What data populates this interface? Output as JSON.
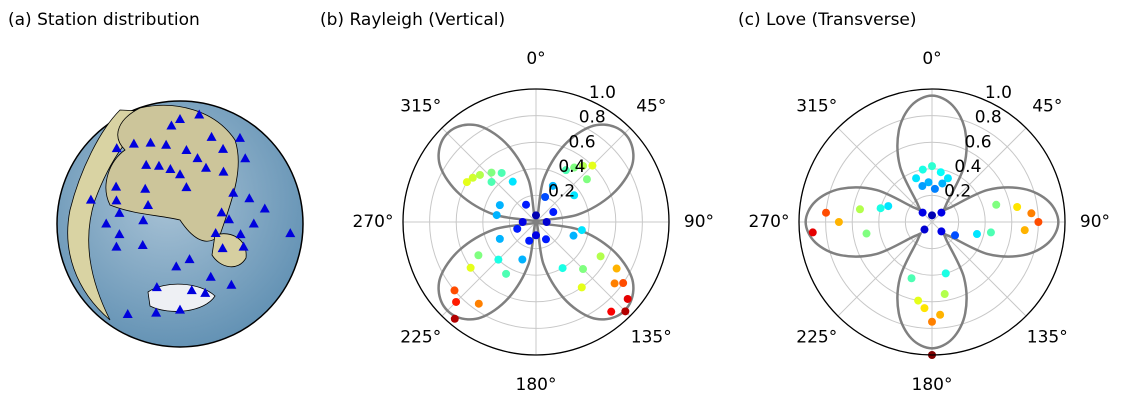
{
  "chart_data": [
    {
      "type": "station-map",
      "title": "(a) Station distribution",
      "marker_color": "#0000dd",
      "points": {
        "theta": [
          0,
          10,
          355,
          20,
          30,
          350,
          5,
          15,
          340,
          330,
          320,
          25,
          40,
          45,
          35,
          0,
          350,
          340,
          10,
          330,
          300,
          290,
          280,
          270,
          260,
          250,
          275,
          300,
          315,
          285,
          240,
          60,
          70,
          80,
          90,
          100,
          110,
          95,
          85,
          105,
          120,
          75,
          150,
          160,
          170,
          180,
          195,
          200,
          140,
          210,
          185,
          165
        ],
        "r": [
          0.85,
          0.9,
          0.8,
          0.75,
          0.7,
          0.65,
          0.6,
          0.55,
          0.7,
          0.75,
          0.8,
          0.5,
          0.55,
          0.75,
          0.85,
          0.4,
          0.45,
          0.5,
          0.3,
          0.55,
          0.6,
          0.55,
          0.5,
          0.6,
          0.5,
          0.55,
          0.3,
          0.3,
          0.4,
          0.75,
          0.35,
          0.5,
          0.6,
          0.7,
          0.6,
          0.5,
          0.55,
          0.9,
          0.4,
          0.3,
          0.4,
          0.35,
          0.5,
          0.6,
          0.55,
          0.7,
          0.75,
          0.55,
          0.65,
          0.85,
          0.35,
          0.3
        ]
      }
    },
    {
      "type": "polar",
      "title": "(b) Rayleigh (Vertical)",
      "colormap": "jet",
      "curve_color": "#808080",
      "grid": true,
      "rlim": [
        0,
        1
      ],
      "rticks": [
        {
          "value": 0.2,
          "label": "0.2"
        },
        {
          "value": 0.4,
          "label": "0.4"
        },
        {
          "value": 0.6,
          "label": "0.6"
        },
        {
          "value": 0.8,
          "label": "0.8"
        },
        {
          "value": 1,
          "label": "1.0"
        }
      ],
      "thetaticks": [
        {
          "value": 0,
          "label": "0°"
        },
        {
          "value": 45,
          "label": "45°"
        },
        {
          "value": 90,
          "label": "90°"
        },
        {
          "value": 135,
          "label": "135°"
        },
        {
          "value": 180,
          "label": "180°"
        },
        {
          "value": 225,
          "label": "225°"
        },
        {
          "value": 270,
          "label": "270°"
        },
        {
          "value": 315,
          "label": "315°"
        }
      ],
      "points": {
        "theta": [
          300,
          305,
          310,
          318,
          325,
          330,
          312,
          295,
          30,
          35,
          40,
          45,
          50,
          25,
          20,
          55,
          120,
          125,
          130,
          135,
          140,
          128,
          118,
          145,
          150,
          110,
          135,
          220,
          225,
          230,
          215,
          235,
          240,
          210,
          225,
          245,
          200,
          0,
          90,
          180,
          270,
          60,
          150,
          250,
          330,
          100,
          280,
          200
        ],
        "r": [
          0.6,
          0.58,
          0.55,
          0.5,
          0.45,
          0.35,
          0.45,
          0.3,
          0.45,
          0.5,
          0.55,
          0.6,
          0.5,
          0.3,
          0.2,
          0.35,
          0.7,
          0.8,
          0.9,
          0.95,
          0.88,
          0.75,
          0.55,
          0.6,
          0.4,
          0.3,
          0.5,
          0.95,
          0.85,
          0.8,
          0.75,
          0.6,
          0.5,
          0.45,
          0.4,
          0.3,
          0.3,
          0.05,
          0.08,
          0.1,
          0.1,
          0.15,
          0.15,
          0.15,
          0.15,
          0.35,
          0.3,
          0.15
        ]
      },
      "curve": {
        "theta": [
          0,
          10,
          20,
          30,
          40,
          50,
          60,
          70,
          80,
          90,
          100,
          110,
          120,
          130,
          140,
          150,
          160,
          170,
          180,
          190,
          200,
          210,
          220,
          230,
          240,
          250,
          260,
          270,
          280,
          290,
          300,
          310,
          320,
          330,
          340,
          350
        ],
        "r": [
          0,
          0.32,
          0.61,
          0.83,
          0.93,
          0.93,
          0.83,
          0.61,
          0.32,
          0,
          0.32,
          0.61,
          0.83,
          0.93,
          0.93,
          0.83,
          0.61,
          0.32,
          0,
          0.32,
          0.61,
          0.83,
          0.93,
          0.93,
          0.83,
          0.61,
          0.32,
          0,
          0.32,
          0.61,
          0.83,
          0.93,
          0.93,
          0.83,
          0.61,
          0.32
        ]
      }
    },
    {
      "type": "polar",
      "title": "(c) Love (Transverse)",
      "colormap": "jet",
      "curve_color": "#808080",
      "grid": true,
      "rlim": [
        0,
        1
      ],
      "rticks": [
        {
          "value": 0.2,
          "label": "0.2"
        },
        {
          "value": 0.4,
          "label": "0.4"
        },
        {
          "value": 0.6,
          "label": "0.6"
        },
        {
          "value": 0.8,
          "label": "0.8"
        },
        {
          "value": 1,
          "label": "1.0"
        }
      ],
      "thetaticks": [
        {
          "value": 0,
          "label": "0°"
        },
        {
          "value": 45,
          "label": "45°"
        },
        {
          "value": 90,
          "label": "90°"
        },
        {
          "value": 135,
          "label": "135°"
        },
        {
          "value": 180,
          "label": "180°"
        },
        {
          "value": 225,
          "label": "225°"
        },
        {
          "value": 270,
          "label": "270°"
        },
        {
          "value": 315,
          "label": "315°"
        }
      ],
      "points": {
        "theta": [
          340,
          350,
          0,
          10,
          20,
          355,
          5,
          15,
          345,
          85,
          90,
          95,
          80,
          100,
          75,
          105,
          175,
          180,
          185,
          170,
          190,
          180,
          200,
          165,
          265,
          275,
          270,
          280,
          260,
          285,
          290,
          45,
          135,
          225,
          315,
          0,
          120
        ],
        "r": [
          0.35,
          0.4,
          0.42,
          0.38,
          0.35,
          0.3,
          0.25,
          0.3,
          0.28,
          0.75,
          0.8,
          0.7,
          0.65,
          0.45,
          0.5,
          0.35,
          0.7,
          0.75,
          0.65,
          0.55,
          0.6,
          1,
          0.45,
          0.4,
          0.9,
          0.8,
          0.7,
          0.55,
          0.5,
          0.4,
          0.35,
          0.1,
          0.1,
          0.08,
          0.1,
          0.05,
          0.2
        ]
      },
      "curve": {
        "theta": [
          0,
          10,
          20,
          30,
          40,
          50,
          60,
          70,
          80,
          90,
          100,
          110,
          120,
          130,
          140,
          150,
          160,
          170,
          180,
          190,
          200,
          210,
          220,
          230,
          240,
          250,
          260,
          270,
          280,
          290,
          300,
          310,
          320,
          330,
          340,
          350
        ],
        "r": [
          0.95,
          0.89,
          0.73,
          0.48,
          0.16,
          0.16,
          0.48,
          0.73,
          0.89,
          0.95,
          0.89,
          0.73,
          0.48,
          0.16,
          0.16,
          0.48,
          0.73,
          0.89,
          0.95,
          0.89,
          0.73,
          0.48,
          0.16,
          0.16,
          0.48,
          0.73,
          0.89,
          0.95,
          0.89,
          0.73,
          0.48,
          0.16,
          0.16,
          0.48,
          0.73,
          0.89
        ]
      }
    }
  ]
}
